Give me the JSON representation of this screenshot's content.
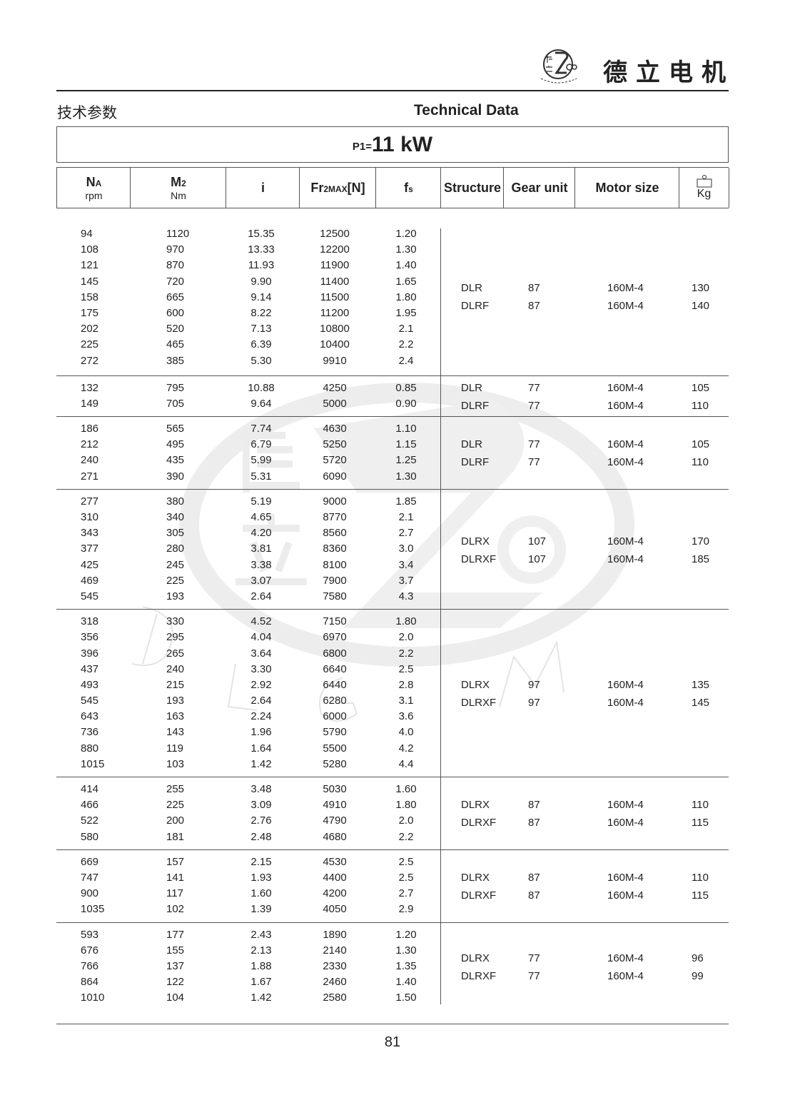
{
  "header": {
    "logo_text": "De Li Gear Motor",
    "logo_glyphs": "德立",
    "brand": "德立电机",
    "title_cn": "技术参数",
    "title_en": "Technical Data"
  },
  "power": {
    "label": "P1=",
    "value": "11 kW"
  },
  "columns": [
    {
      "main": "N",
      "sub": "A",
      "unit": "rpm"
    },
    {
      "main": "M",
      "sub": "2",
      "unit": "Nm"
    },
    {
      "main": "i"
    },
    {
      "main": "Fr",
      "sub": "2MAX",
      "tail": "[N]"
    },
    {
      "main": "f",
      "sub": "s"
    },
    {
      "main": "Structure"
    },
    {
      "main": "Gear unit"
    },
    {
      "main": "Motor size"
    },
    {
      "main": "Kg",
      "icon": "weight-icon"
    }
  ],
  "groups": [
    {
      "rows": [
        [
          "94",
          "1120",
          "15.35",
          "12500",
          "1.20"
        ],
        [
          "108",
          "970",
          "13.33",
          "12200",
          "1.30"
        ],
        [
          "121",
          "870",
          "11.93",
          "11900",
          "1.40"
        ],
        [
          "145",
          "720",
          "9.90",
          "11400",
          "1.65"
        ],
        [
          "158",
          "665",
          "9.14",
          "11500",
          "1.80"
        ],
        [
          "175",
          "600",
          "8.22",
          "11200",
          "1.95"
        ],
        [
          "202",
          "520",
          "7.13",
          "10800",
          "2.1"
        ],
        [
          "225",
          "465",
          "6.39",
          "10400",
          "2.2"
        ],
        [
          "272",
          "385",
          "5.30",
          "9910",
          "2.4"
        ]
      ],
      "specs": [
        [
          "DLR",
          "87",
          "160M-4",
          "130"
        ],
        [
          "DLRF",
          "87",
          "160M-4",
          "140"
        ]
      ]
    },
    {
      "rows": [
        [
          "132",
          "795",
          "10.88",
          "4250",
          "0.85"
        ],
        [
          "149",
          "705",
          "9.64",
          "5000",
          "0.90"
        ]
      ],
      "specs": [
        [
          "DLR",
          "77",
          "160M-4",
          "105"
        ],
        [
          "DLRF",
          "77",
          "160M-4",
          "110"
        ]
      ]
    },
    {
      "rows": [
        [
          "186",
          "565",
          "7.74",
          "4630",
          "1.10"
        ],
        [
          "212",
          "495",
          "6.79",
          "5250",
          "1.15"
        ],
        [
          "240",
          "435",
          "5.99",
          "5720",
          "1.25"
        ],
        [
          "271",
          "390",
          "5.31",
          "6090",
          "1.30"
        ]
      ],
      "specs": [
        [
          "DLR",
          "77",
          "160M-4",
          "105"
        ],
        [
          "DLRF",
          "77",
          "160M-4",
          "110"
        ]
      ]
    },
    {
      "rows": [
        [
          "277",
          "380",
          "5.19",
          "9000",
          "1.85"
        ],
        [
          "310",
          "340",
          "4.65",
          "8770",
          "2.1"
        ],
        [
          "343",
          "305",
          "4.20",
          "8560",
          "2.7"
        ],
        [
          "377",
          "280",
          "3.81",
          "8360",
          "3.0"
        ],
        [
          "425",
          "245",
          "3.38",
          "8100",
          "3.4"
        ],
        [
          "469",
          "225",
          "3.07",
          "7900",
          "3.7"
        ],
        [
          "545",
          "193",
          "2.64",
          "7580",
          "4.3"
        ]
      ],
      "specs": [
        [
          "DLRX",
          "107",
          "160M-4",
          "170"
        ],
        [
          "DLRXF",
          "107",
          "160M-4",
          "185"
        ]
      ]
    },
    {
      "rows": [
        [
          "318",
          "330",
          "4.52",
          "7150",
          "1.80"
        ],
        [
          "356",
          "295",
          "4.04",
          "6970",
          "2.0"
        ],
        [
          "396",
          "265",
          "3.64",
          "6800",
          "2.2"
        ],
        [
          "437",
          "240",
          "3.30",
          "6640",
          "2.5"
        ],
        [
          "493",
          "215",
          "2.92",
          "6440",
          "2.8"
        ],
        [
          "545",
          "193",
          "2.64",
          "6280",
          "3.1"
        ],
        [
          "643",
          "163",
          "2.24",
          "6000",
          "3.6"
        ],
        [
          "736",
          "143",
          "1.96",
          "5790",
          "4.0"
        ],
        [
          "880",
          "119",
          "1.64",
          "5500",
          "4.2"
        ],
        [
          "1015",
          "103",
          "1.42",
          "5280",
          "4.4"
        ]
      ],
      "specs": [
        [
          "DLRX",
          "97",
          "160M-4",
          "135"
        ],
        [
          "DLRXF",
          "97",
          "160M-4",
          "145"
        ]
      ]
    },
    {
      "rows": [
        [
          "414",
          "255",
          "3.48",
          "5030",
          "1.60"
        ],
        [
          "466",
          "225",
          "3.09",
          "4910",
          "1.80"
        ],
        [
          "522",
          "200",
          "2.76",
          "4790",
          "2.0"
        ],
        [
          "580",
          "181",
          "2.48",
          "4680",
          "2.2"
        ]
      ],
      "specs": [
        [
          "DLRX",
          "87",
          "160M-4",
          "110"
        ],
        [
          "DLRXF",
          "87",
          "160M-4",
          "115"
        ]
      ]
    },
    {
      "rows": [
        [
          "669",
          "157",
          "2.15",
          "4530",
          "2.5"
        ],
        [
          "747",
          "141",
          "1.93",
          "4400",
          "2.5"
        ],
        [
          "900",
          "117",
          "1.60",
          "4200",
          "2.7"
        ],
        [
          "1035",
          "102",
          "1.39",
          "4050",
          "2.9"
        ]
      ],
      "specs": [
        [
          "DLRX",
          "87",
          "160M-4",
          "110"
        ],
        [
          "DLRXF",
          "87",
          "160M-4",
          "115"
        ]
      ]
    },
    {
      "rows": [
        [
          "593",
          "177",
          "2.43",
          "1890",
          "1.20"
        ],
        [
          "676",
          "155",
          "2.13",
          "2140",
          "1.30"
        ],
        [
          "766",
          "137",
          "1.88",
          "2330",
          "1.35"
        ],
        [
          "864",
          "122",
          "1.67",
          "2460",
          "1.40"
        ],
        [
          "1010",
          "104",
          "1.42",
          "2580",
          "1.50"
        ]
      ],
      "specs": [
        [
          "DLRX",
          "77",
          "160M-4",
          "96"
        ],
        [
          "DLRXF",
          "77",
          "160M-4",
          "99"
        ]
      ]
    }
  ],
  "footer": {
    "page_number": "81"
  }
}
